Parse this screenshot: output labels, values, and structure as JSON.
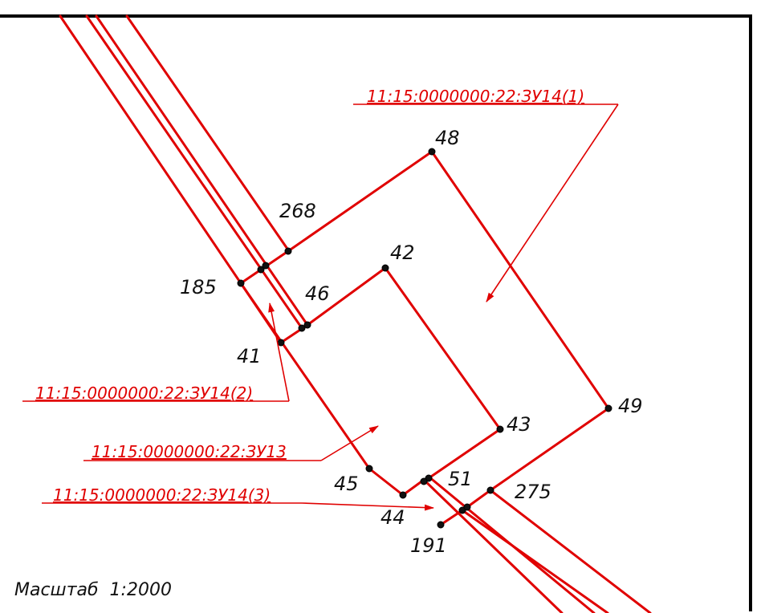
{
  "points": [
    {
      "id": "p48",
      "label": "48"
    },
    {
      "id": "p268",
      "label": "268"
    },
    {
      "id": "p42",
      "label": "42"
    },
    {
      "id": "p185",
      "label": "185"
    },
    {
      "id": "p46",
      "label": "46"
    },
    {
      "id": "p41",
      "label": "41"
    },
    {
      "id": "p43",
      "label": "43"
    },
    {
      "id": "p49",
      "label": "49"
    },
    {
      "id": "p45",
      "label": "45"
    },
    {
      "id": "p51",
      "label": "51"
    },
    {
      "id": "p275",
      "label": "275"
    },
    {
      "id": "p44",
      "label": "44"
    },
    {
      "id": "p191",
      "label": "191"
    }
  ],
  "parcels": {
    "zu14_1": "11:15:0000000:22:ЗУ14(1)",
    "zu14_2": "11:15:0000000:22:ЗУ14(2)",
    "zu13": "11:15:0000000:22:ЗУ13",
    "zu14_3": "11:15:0000000:22:ЗУ14(3)"
  },
  "scale_label": "Масштаб  1:2000",
  "colors": {
    "boundary": "#e00000",
    "points": "#111111",
    "frame": "#000000"
  }
}
